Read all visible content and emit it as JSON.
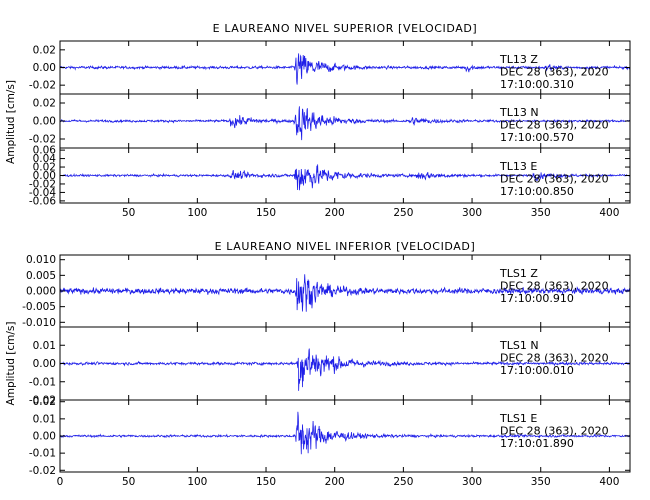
{
  "chart_data": [
    {
      "type": "line",
      "title": "E LAUREANO NIVEL SUPERIOR [VELOCIDAD]",
      "ylabel": "Amplitud [cm/s]",
      "xlim": [
        0,
        415
      ],
      "xticks": [
        50,
        100,
        150,
        200,
        250,
        300,
        350,
        400
      ],
      "series_color": "#1f1fe8",
      "panels": [
        {
          "name": "TL13 Z",
          "label_lines": [
            "TL13   Z",
            "DEC 28 (363), 2020",
            "17:10:00.310"
          ],
          "ylim": [
            -0.03,
            0.03
          ],
          "yticks": [
            -0.02,
            0.0,
            0.02
          ],
          "yticklabels": [
            "-0.02",
            "0.00",
            "0.02"
          ],
          "noise": 0.0018,
          "bursts": [
            {
              "t": 172,
              "amp": 0.026,
              "width": 14
            },
            {
              "t": 296,
              "amp": 0.006,
              "width": 4
            },
            {
              "t": 355,
              "amp": 0.005,
              "width": 4
            }
          ]
        },
        {
          "name": "TL13 N",
          "label_lines": [
            "TL13   N",
            "DEC 28 (363), 2020",
            "17:10:00.570"
          ],
          "ylim": [
            -0.03,
            0.03
          ],
          "yticks": [
            -0.02,
            0.0,
            0.02
          ],
          "yticklabels": [
            "-0.02",
            "0.00",
            "0.02"
          ],
          "noise": 0.0015,
          "bursts": [
            {
              "t": 172,
              "amp": 0.027,
              "width": 16
            },
            {
              "t": 125,
              "amp": 0.009,
              "width": 14
            },
            {
              "t": 255,
              "amp": 0.005,
              "width": 14
            }
          ]
        },
        {
          "name": "TL13 E",
          "label_lines": [
            "TL13   E",
            "DEC 28 (363), 2020",
            "17:10:00.850"
          ],
          "ylim": [
            -0.065,
            0.065
          ],
          "yticks": [
            -0.06,
            -0.04,
            -0.02,
            0.0,
            0.02,
            0.04,
            0.06
          ],
          "yticklabels": [
            "-0.06",
            "-0.04",
            "-0.02",
            "0.00",
            "0.02",
            "0.04",
            "0.06"
          ],
          "noise": 0.003,
          "bursts": [
            {
              "t": 172,
              "amp": 0.06,
              "width": 18
            },
            {
              "t": 125,
              "amp": 0.012,
              "width": 16
            },
            {
              "t": 260,
              "amp": 0.013,
              "width": 14
            },
            {
              "t": 345,
              "amp": 0.01,
              "width": 12
            }
          ]
        }
      ]
    },
    {
      "type": "line",
      "title": "E LAUREANO NIVEL INFERIOR [VELOCIDAD]",
      "ylabel": "Amplitud [cm/s]",
      "xlim": [
        0,
        415
      ],
      "xticks": [
        0,
        50,
        100,
        150,
        200,
        250,
        300,
        350,
        400
      ],
      "series_color": "#1f1fe8",
      "panels": [
        {
          "name": "TLS1 Z",
          "label_lines": [
            "TLS1   Z",
            "DEC 28 (363), 2020",
            "17:10:00.910"
          ],
          "ylim": [
            -0.0115,
            0.0115
          ],
          "yticks": [
            -0.01,
            -0.005,
            0.0,
            0.005,
            0.01
          ],
          "yticklabels": [
            "-0.010",
            "-0.005",
            "0.000",
            "0.005",
            "0.010"
          ],
          "noise": 0.0011,
          "bursts": [
            {
              "t": 173,
              "amp": 0.0105,
              "width": 12
            }
          ]
        },
        {
          "name": "TLS1 N",
          "label_lines": [
            "TLS1   N",
            "DEC 28 (363), 2020",
            "17:10:00.010"
          ],
          "ylim": [
            -0.02,
            0.02
          ],
          "yticks": [
            -0.02,
            -0.01,
            0.0,
            0.01
          ],
          "yticklabels": [
            "-0.02",
            "-0.01",
            "0.00",
            "0.01"
          ],
          "noise": 0.0009,
          "bursts": [
            {
              "t": 174,
              "amp": 0.019,
              "width": 18
            }
          ]
        },
        {
          "name": "TLS1 E",
          "label_lines": [
            "TLS1   E",
            "DEC 28 (363), 2020",
            "17:10:01.890"
          ],
          "ylim": [
            -0.021,
            0.021
          ],
          "yticks": [
            -0.02,
            -0.01,
            0.0,
            0.01,
            0.02
          ],
          "yticklabels": [
            "-0.02",
            "-0.01",
            "0.00",
            "0.01",
            "0.02"
          ],
          "noise": 0.0008,
          "bursts": [
            {
              "t": 173,
              "amp": 0.02,
              "width": 16
            }
          ]
        }
      ]
    }
  ]
}
